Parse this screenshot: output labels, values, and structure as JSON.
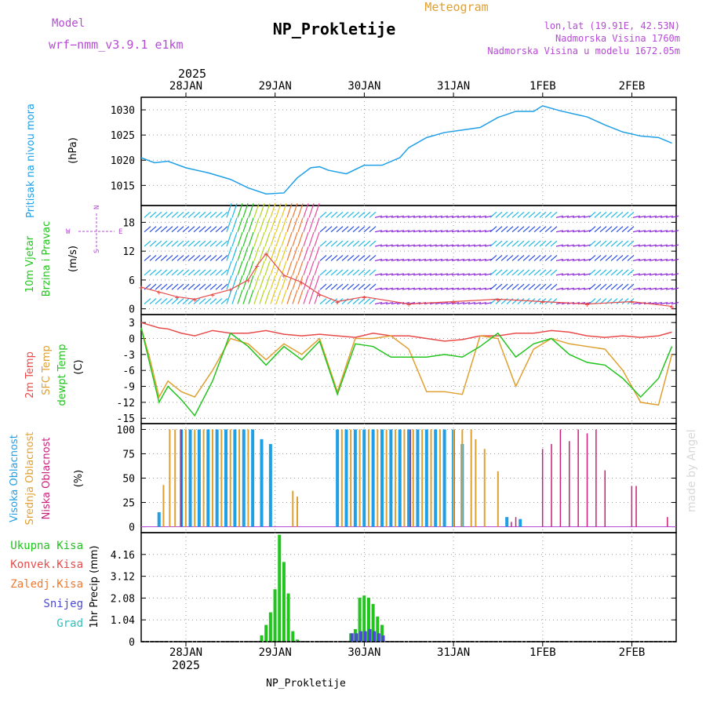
{
  "header": {
    "model_label": "Model",
    "model_name": "wrf−nmm_v3.9.1  e1km",
    "product": "Meteogram",
    "station": "NP_Prokletije",
    "coords": "lon,lat (19.91E, 42.53N)",
    "elevation": "Nadmorska Visina 1760m",
    "model_elevation": "Nadmorska Visina u modelu 1672.05m",
    "watermark": "made by Angel",
    "footer_station": "NP_Prokletije",
    "year_top": "2025",
    "year_bottom": "2025"
  },
  "colors": {
    "pressure": "#1f9fe6",
    "temp2m": "#e84a4a",
    "sfc": "#e0a030",
    "dewpt": "#22c41e",
    "high_cloud": "#1f9fe6",
    "mid_cloud": "#e0a030",
    "low_cloud": "#cc1f7a",
    "total_precip": "#22c41e",
    "conv_precip": "#e84a4a",
    "snow": "#4a4ad6",
    "grad": "#2bc0c0",
    "wind_label": "#22c41e",
    "legend_purple": "#b64ad6"
  },
  "chart_data": [
    {
      "type": "line",
      "id": "pressure",
      "ylabel_left": "Pritisak na nivou mora",
      "unit": "(hPa)",
      "yticks": [
        1015,
        1020,
        1025,
        1030
      ],
      "ylim": [
        1011,
        1032.5
      ],
      "x_day": [
        0,
        0.15,
        0.3,
        0.5,
        0.75,
        1.0,
        1.2,
        1.4,
        1.6,
        1.75,
        1.9,
        2.0,
        2.1,
        2.3,
        2.5,
        2.7,
        2.9,
        3.0,
        3.2,
        3.4,
        3.6,
        3.8,
        4.0,
        4.2,
        4.4,
        4.5,
        4.7,
        4.9,
        5.0,
        5.2,
        5.4,
        5.6,
        5.8,
        5.95
      ],
      "series": [
        {
          "name": "",
          "values": [
            1020.5,
            1019.5,
            1019.8,
            1018.5,
            1017.5,
            1016.2,
            1014.5,
            1013.3,
            1013.5,
            1016.5,
            1018.5,
            1018.7,
            1018.0,
            1017.3,
            1019.0,
            1019.0,
            1020.5,
            1022.5,
            1024.5,
            1025.5,
            1026.0,
            1026.5,
            1028.5,
            1029.7,
            1029.7,
            1030.8,
            1029.8,
            1029.0,
            1028.6,
            1027.0,
            1025.6,
            1024.8,
            1024.5,
            1023.4
          ]
        }
      ]
    },
    {
      "type": "scatter",
      "id": "wind",
      "ylabel_left": [
        "10m Vjetar",
        "Brzina i Pravac"
      ],
      "unit": "(m/s)",
      "compass": {
        "n": "N",
        "s": "S",
        "e": "E",
        "w": "W"
      },
      "yticks": [
        0,
        6,
        12,
        18
      ],
      "ylim": [
        -1.2,
        21.5
      ],
      "rows": [
        1,
        4,
        7,
        10,
        13,
        16,
        19
      ],
      "speed_x_day": [
        0,
        0.2,
        0.4,
        0.6,
        0.8,
        1.0,
        1.2,
        1.3,
        1.4,
        1.6,
        1.8,
        2.0,
        2.2,
        2.5,
        3.0,
        3.5,
        4.0,
        4.5,
        5.0,
        5.5,
        5.95
      ],
      "speed_values": [
        4.5,
        3.5,
        2.5,
        2.0,
        3.0,
        4.0,
        6.0,
        9.0,
        11.5,
        7.0,
        5.5,
        3.0,
        1.5,
        2.5,
        1.0,
        1.5,
        2.0,
        1.5,
        1.0,
        1.5,
        0.5
      ]
    },
    {
      "type": "line",
      "id": "temperature",
      "ylabel_left": [
        "2m Temp",
        "SFC Temp",
        "dewpt Temp"
      ],
      "unit": "(C)",
      "yticks": [
        3,
        0,
        -3,
        -6,
        -9,
        -12,
        -15
      ],
      "ylim": [
        -16,
        4.5
      ],
      "x_day": [
        0,
        0.1,
        0.2,
        0.3,
        0.45,
        0.6,
        0.8,
        1.0,
        1.2,
        1.4,
        1.6,
        1.8,
        2.0,
        2.2,
        2.4,
        2.6,
        2.8,
        3.0,
        3.2,
        3.4,
        3.6,
        3.8,
        4.0,
        4.2,
        4.4,
        4.6,
        4.8,
        5.0,
        5.2,
        5.4,
        5.6,
        5.8,
        5.95
      ],
      "series": [
        {
          "name": "2m Temp",
          "values": [
            3.0,
            2.5,
            2.0,
            1.8,
            1.0,
            0.5,
            1.5,
            1.0,
            1.0,
            1.5,
            0.8,
            0.5,
            0.8,
            0.5,
            0.2,
            1.0,
            0.5,
            0.5,
            0.0,
            -0.5,
            -0.2,
            0.5,
            0.5,
            1.0,
            1.0,
            1.5,
            1.2,
            0.5,
            0.2,
            0.5,
            0.2,
            0.5,
            1.2
          ]
        },
        {
          "name": "SFC Temp",
          "values": [
            2.0,
            -4.0,
            -11.0,
            -8.0,
            -10.0,
            -11.0,
            -6.0,
            0.0,
            -1.0,
            -4.0,
            -1.0,
            -3.0,
            0.0,
            -10.0,
            0.0,
            0.0,
            0.5,
            -2.0,
            -10.0,
            -10.0,
            -10.5,
            0.5,
            0.0,
            -9.0,
            -2.0,
            0.0,
            -1.0,
            -1.5,
            -2.0,
            -6.0,
            -12.0,
            -12.5,
            -3.0
          ]
        },
        {
          "name": "dewpt Temp",
          "values": [
            2.0,
            -5.0,
            -12.0,
            -9.0,
            -11.5,
            -14.5,
            -8.0,
            1.0,
            -1.5,
            -5.0,
            -1.5,
            -4.0,
            -0.5,
            -10.5,
            -1.0,
            -1.5,
            -3.5,
            -3.5,
            -3.5,
            -3.0,
            -3.5,
            -1.5,
            1.0,
            -3.5,
            -1.0,
            0.0,
            -3.0,
            -4.5,
            -5.0,
            -7.5,
            -11.0,
            -7.5,
            -1.5
          ]
        }
      ]
    },
    {
      "type": "bar",
      "id": "clouds",
      "ylabel_left": [
        "Visoka Oblacnost",
        "Srednja Oblacnost",
        "Niska Oblacnost"
      ],
      "unit": "(%)",
      "yticks": [
        0,
        25,
        50,
        75,
        100
      ],
      "ylim": [
        -6,
        106
      ],
      "series": [
        {
          "name": "Visoka Oblacnost",
          "x_day": [
            0.2,
            0.45,
            0.55,
            0.65,
            0.75,
            0.85,
            0.95,
            1.05,
            1.15,
            1.25,
            1.35,
            1.45,
            2.2,
            2.3,
            2.4,
            2.5,
            2.6,
            2.7,
            2.8,
            2.9,
            3.0,
            3.1,
            3.2,
            3.3,
            3.4,
            3.5,
            3.6,
            4.1,
            4.25
          ],
          "values": [
            15,
            100,
            100,
            100,
            100,
            100,
            100,
            100,
            100,
            100,
            90,
            85,
            100,
            100,
            100,
            100,
            100,
            100,
            100,
            100,
            100,
            100,
            100,
            100,
            100,
            100,
            85,
            10,
            8
          ]
        },
        {
          "name": "Srednja Oblacnost",
          "x_day": [
            0.25,
            0.32,
            0.38,
            0.5,
            0.6,
            0.7,
            0.8,
            0.9,
            1.0,
            1.1,
            1.2,
            1.7,
            1.75,
            2.25,
            2.35,
            2.45,
            2.55,
            2.65,
            2.75,
            2.85,
            2.95,
            3.05,
            3.15,
            3.25,
            3.35,
            3.5,
            3.6,
            3.7,
            3.75,
            3.85,
            4.0
          ],
          "values": [
            43,
            100,
            100,
            100,
            100,
            100,
            100,
            100,
            100,
            100,
            100,
            37,
            31,
            100,
            100,
            100,
            100,
            100,
            100,
            100,
            100,
            100,
            100,
            100,
            100,
            100,
            100,
            100,
            90,
            80,
            57
          ]
        },
        {
          "name": "Niska Oblacnost",
          "x_day": [
            0.45,
            3.02,
            4.15,
            4.2,
            4.5,
            4.6,
            4.7,
            4.8,
            4.9,
            5.0,
            5.1,
            5.2,
            5.5,
            5.55,
            5.9
          ],
          "values": [
            100,
            100,
            5,
            10,
            80,
            85,
            100,
            88,
            100,
            96,
            100,
            58,
            42,
            42,
            10
          ]
        }
      ]
    },
    {
      "type": "bar",
      "id": "precip",
      "ylabel_left": "1hr Precip (mm)",
      "legend": [
        "Ukupna Kisa",
        "Konvek.Kisa",
        "Zaledj.Kisa",
        "Snijeg",
        "Grad"
      ],
      "yticks": [
        0,
        1.04,
        2.08,
        3.12,
        4.16
      ],
      "ylim": [
        0,
        5.2
      ],
      "series": [
        {
          "name": "Ukupna Kisa",
          "x_day": [
            1.35,
            1.4,
            1.45,
            1.5,
            1.55,
            1.6,
            1.65,
            1.7,
            1.75,
            2.35,
            2.4,
            2.45,
            2.5,
            2.55,
            2.6,
            2.65,
            2.7
          ],
          "values": [
            0.3,
            0.8,
            1.4,
            2.5,
            5.1,
            3.8,
            2.3,
            0.5,
            0.1,
            0.4,
            0.6,
            2.1,
            2.2,
            2.1,
            1.8,
            1.2,
            0.8
          ]
        },
        {
          "name": "Snijeg",
          "x_day": [
            2.35,
            2.4,
            2.45,
            2.5,
            2.55,
            2.6,
            2.65,
            2.7
          ],
          "values": [
            0.4,
            0.4,
            0.5,
            0.5,
            0.6,
            0.5,
            0.4,
            0.3
          ]
        }
      ]
    }
  ],
  "x_axis": {
    "days": [
      "28JAN",
      "29JAN",
      "30JAN",
      "31JAN",
      "1FEB",
      "2FEB"
    ]
  }
}
